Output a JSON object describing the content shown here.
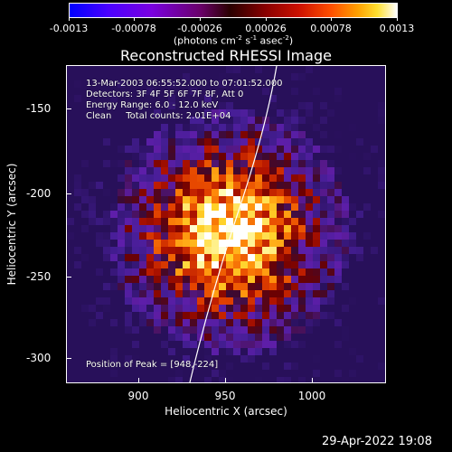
{
  "colorbar": {
    "ticks": [
      "-0.0013",
      "-0.00078",
      "-0.00026",
      "0.00026",
      "0.00078",
      "0.0013"
    ],
    "units_text": "(photons cm",
    "units_sup1": "-2",
    "units_mid": " s",
    "units_sup2": "-1",
    "units_end": " asec",
    "units_sup3": "-2",
    "units_close": ")"
  },
  "title": "Reconstructed RHESSI Image",
  "info": {
    "line1": "13-Mar-2003 06:55:52.000 to 07:01:52.000",
    "line2": "Detectors: 3F 4F 5F 6F 7F 8F, Att 0",
    "line3": "Energy Range: 6.0 - 12.0 keV",
    "line4": "Clean     Total counts: 2.01E+04",
    "peak": "Position of Peak = [948,-224]"
  },
  "axes": {
    "xlabel": "Heliocentric X (arcsec)",
    "ylabel": "Heliocentric Y (arcsec)",
    "xticks": [
      "900",
      "950",
      "1000"
    ],
    "yticks": [
      "-150",
      "-200",
      "-250",
      "-300"
    ]
  },
  "timestamp": "29-Apr-2022 19:08",
  "colors": {
    "background": "#000000",
    "limb_line": "#ffffff",
    "peak": "#ffffa0"
  }
}
